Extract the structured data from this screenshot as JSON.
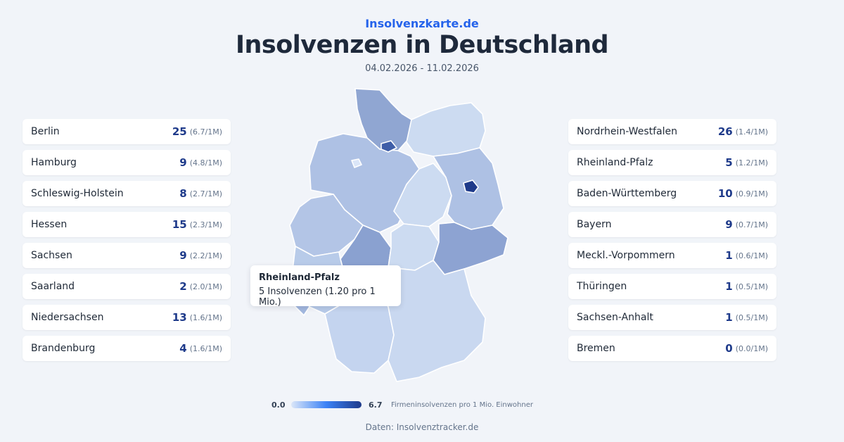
{
  "header": {
    "brand": "Insolvenzkarte.de",
    "title": "Insolvenzen in Deutschland",
    "date_range": "04.02.2026 - 11.02.2026"
  },
  "left_list": [
    {
      "name": "Berlin",
      "count": "25",
      "rate": "(6.7/1M)"
    },
    {
      "name": "Hamburg",
      "count": "9",
      "rate": "(4.8/1M)"
    },
    {
      "name": "Schleswig-Holstein",
      "count": "8",
      "rate": "(2.7/1M)"
    },
    {
      "name": "Hessen",
      "count": "15",
      "rate": "(2.3/1M)"
    },
    {
      "name": "Sachsen",
      "count": "9",
      "rate": "(2.2/1M)"
    },
    {
      "name": "Saarland",
      "count": "2",
      "rate": "(2.0/1M)"
    },
    {
      "name": "Niedersachsen",
      "count": "13",
      "rate": "(1.6/1M)"
    },
    {
      "name": "Brandenburg",
      "count": "4",
      "rate": "(1.6/1M)"
    }
  ],
  "right_list": [
    {
      "name": "Nordrhein-Westfalen",
      "count": "26",
      "rate": "(1.4/1M)"
    },
    {
      "name": "Rheinland-Pfalz",
      "count": "5",
      "rate": "(1.2/1M)"
    },
    {
      "name": "Baden-Württemberg",
      "count": "10",
      "rate": "(0.9/1M)"
    },
    {
      "name": "Bayern",
      "count": "9",
      "rate": "(0.7/1M)"
    },
    {
      "name": "Meckl.-Vorpommern",
      "count": "1",
      "rate": "(0.6/1M)"
    },
    {
      "name": "Thüringen",
      "count": "1",
      "rate": "(0.5/1M)"
    },
    {
      "name": "Sachsen-Anhalt",
      "count": "1",
      "rate": "(0.5/1M)"
    },
    {
      "name": "Bremen",
      "count": "0",
      "rate": "(0.0/1M)"
    }
  ],
  "tooltip": {
    "title": "Rheinland-Pfalz",
    "body": "5 Insolvenzen (1.20 pro 1 Mio.)"
  },
  "legend": {
    "min": "0.0",
    "max": "6.7",
    "caption": "Firmeninsolvenzen pro 1 Mio. Einwohner",
    "color_low": "#dbe6f8",
    "color_high": "#1e3a8a"
  },
  "source": "Daten: Insolvenztracker.de",
  "colors": {
    "accent": "#2563eb",
    "count": "#1e3a8a",
    "background": "#f1f4f9"
  }
}
